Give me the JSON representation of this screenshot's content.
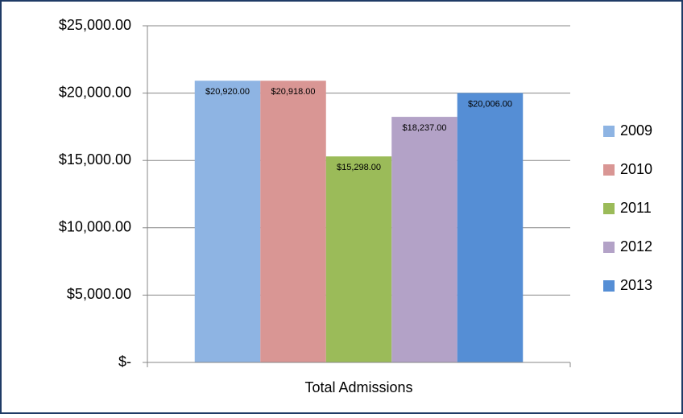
{
  "chart_data": {
    "type": "bar",
    "categories": [
      "Total Admissions"
    ],
    "series": [
      {
        "name": "2009",
        "color": "#8eb4e3",
        "values": [
          20920
        ],
        "value_labels": [
          "$20,920.00"
        ]
      },
      {
        "name": "2010",
        "color": "#d99694",
        "values": [
          20918
        ],
        "value_labels": [
          "$20,918.00"
        ]
      },
      {
        "name": "2011",
        "color": "#9bbb59",
        "values": [
          15298
        ],
        "value_labels": [
          "$15,298.00"
        ]
      },
      {
        "name": "2012",
        "color": "#b3a2c7",
        "values": [
          18237
        ],
        "value_labels": [
          "$18,237.00"
        ]
      },
      {
        "name": "2013",
        "color": "#558ed5",
        "values": [
          20006
        ],
        "value_labels": [
          "$20,006.00"
        ]
      }
    ],
    "ylim": [
      0,
      25000
    ],
    "yticks": [
      {
        "value": 0,
        "label": "$-"
      },
      {
        "value": 5000,
        "label": "$5,000.00"
      },
      {
        "value": 10000,
        "label": "$10,000.00"
      },
      {
        "value": 15000,
        "label": "$15,000.00"
      },
      {
        "value": 20000,
        "label": "$20,000.00"
      },
      {
        "value": 25000,
        "label": "$25,000.00"
      }
    ],
    "grid": true,
    "legend": "right"
  }
}
